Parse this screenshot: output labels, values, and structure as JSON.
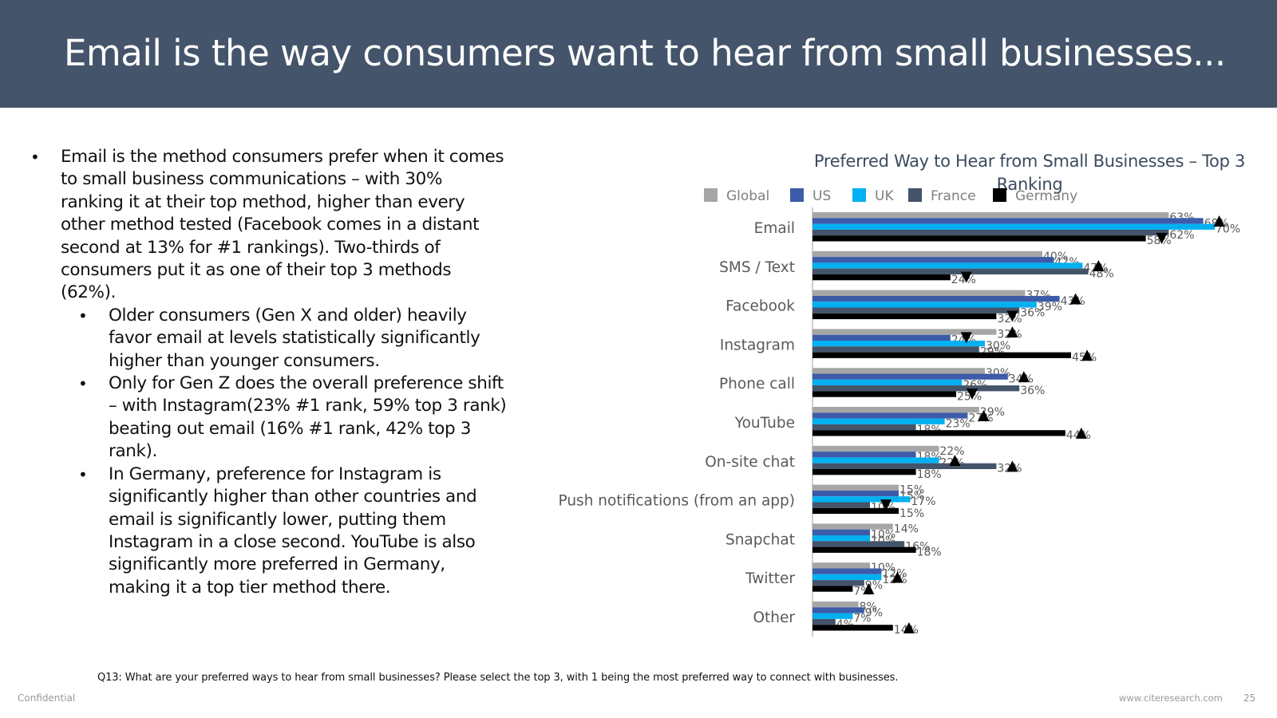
{
  "slide": {
    "title": "Email is the way consumers want to hear from small businesses...",
    "footnote": "Q13: What are your preferred ways to hear from small businesses? Please select the top 3, with 1 being the most preferred way to connect with businesses.",
    "confidential": "Confidential",
    "website": "www.citeresearch.com",
    "page_number": "25"
  },
  "bullets": [
    {
      "level": 1,
      "text": "Email is the method consumers prefer when it comes to small business communications – with 30% ranking it at their top method, higher than every other method tested (Facebook comes in a distant second at 13% for #1 rankings).  Two-thirds of consumers put it as one of their top 3 methods (62%)."
    },
    {
      "level": 2,
      "text": "Older consumers (Gen X and older) heavily favor email at levels statistically significantly higher than younger consumers."
    },
    {
      "level": 2,
      "text": "Only for Gen Z does the overall preference shift – with Instagram(23% #1 rank, 59% top 3 rank) beating out email (16% #1 rank, 42% top 3 rank)."
    },
    {
      "level": 2,
      "text": "In Germany, preference for Instagram is significantly higher than other countries and email is significantly lower, putting them Instagram in a close second. YouTube is also significantly more preferred in Germany, making it a top tier method there."
    }
  ],
  "chart_data": {
    "type": "bar",
    "orientation": "horizontal",
    "title": "Preferred Way to Hear from Small Businesses – Top 3 Ranking",
    "categories": [
      "Email",
      "SMS / Text",
      "Facebook",
      "Instagram",
      "Phone call",
      "YouTube",
      "On-site chat",
      "Push notifications (from an app)",
      "Snapchat",
      "Twitter",
      "Other"
    ],
    "series": [
      {
        "name": "Global",
        "color": "#a6a6a6",
        "values": [
          62,
          40,
          37,
          32,
          30,
          29,
          22,
          15,
          14,
          10,
          8
        ]
      },
      {
        "name": "US",
        "color": "#3d5ba9",
        "values": [
          68,
          42,
          43,
          24,
          34,
          27,
          18,
          15,
          10,
          12,
          9
        ]
      },
      {
        "name": "UK",
        "color": "#00b0f0",
        "values": [
          70,
          47,
          39,
          30,
          26,
          23,
          22,
          17,
          10,
          12,
          7
        ]
      },
      {
        "name": "France",
        "color": "#44546a",
        "values": [
          62,
          48,
          36,
          29,
          36,
          18,
          32,
          10,
          16,
          9,
          4
        ]
      },
      {
        "name": "Germany",
        "color": "#000000",
        "values": [
          58,
          24,
          32,
          45,
          25,
          44,
          18,
          15,
          18,
          7,
          14
        ]
      }
    ],
    "labels": [
      [
        "63%",
        "68%",
        "70%",
        "62%",
        "58%"
      ],
      [
        "40%",
        "42%",
        "47%",
        "48%",
        "24%"
      ],
      [
        "37%",
        "43%",
        "39%",
        "36%",
        "32%"
      ],
      [
        "32%",
        "24%",
        "30%",
        "29%",
        "45%"
      ],
      [
        "30%",
        "34%",
        "26%",
        "36%",
        "25%"
      ],
      [
        "29%",
        "27%",
        "23%",
        "18%",
        "44%"
      ],
      [
        "22%",
        "18%",
        "22%",
        "32%",
        "18%"
      ],
      [
        "15%",
        "15%",
        "17%",
        "10%",
        "15%"
      ],
      [
        "14%",
        "10%",
        "10%",
        "16%",
        "18%"
      ],
      [
        "10%",
        "12%",
        "12%",
        "9%",
        "7%"
      ],
      [
        "8%",
        "9%",
        "7%",
        "4%",
        "14%"
      ]
    ],
    "significance": [
      {
        "category": "Email",
        "series": "US",
        "direction": "up"
      },
      {
        "category": "Email",
        "series": "Germany",
        "direction": "down"
      },
      {
        "category": "SMS / Text",
        "series": "UK",
        "direction": "up"
      },
      {
        "category": "SMS / Text",
        "series": "Germany",
        "direction": "down"
      },
      {
        "category": "Facebook",
        "series": "US",
        "direction": "up"
      },
      {
        "category": "Facebook",
        "series": "Germany",
        "direction": "down"
      },
      {
        "category": "Instagram",
        "series": "US",
        "direction": "down"
      },
      {
        "category": "Instagram",
        "series": "Global",
        "direction": "up"
      },
      {
        "category": "Instagram",
        "series": "Germany",
        "direction": "up"
      },
      {
        "category": "Phone call",
        "series": "US",
        "direction": "up"
      },
      {
        "category": "Phone call",
        "series": "Germany",
        "direction": "down"
      },
      {
        "category": "YouTube",
        "series": "US",
        "direction": "up"
      },
      {
        "category": "YouTube",
        "series": "Germany",
        "direction": "up"
      },
      {
        "category": "On-site chat",
        "series": "UK",
        "direction": "up"
      },
      {
        "category": "On-site chat",
        "series": "France",
        "direction": "up"
      },
      {
        "category": "Push notifications (from an app)",
        "series": "France",
        "direction": "down"
      },
      {
        "category": "Twitter",
        "series": "UK",
        "direction": "up"
      },
      {
        "category": "Twitter",
        "series": "Germany",
        "direction": "up"
      },
      {
        "category": "Other",
        "series": "Germany",
        "direction": "up"
      }
    ],
    "legend_position": "top",
    "xlim": [
      0,
      100
    ],
    "xlabel": "",
    "ylabel": "",
    "grid": false
  }
}
